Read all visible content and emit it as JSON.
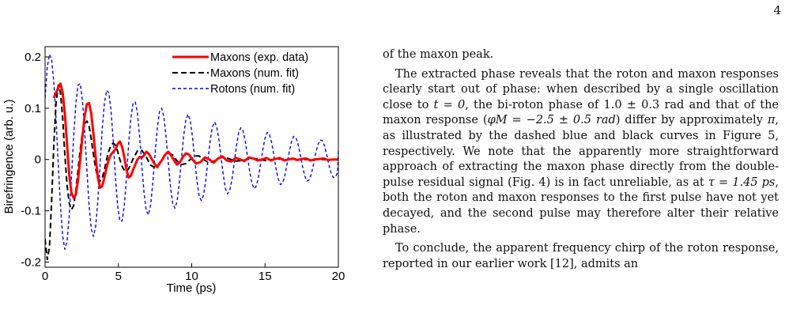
{
  "page": {
    "number": "4"
  },
  "chart_data": {
    "type": "line",
    "xlabel": "Time (ps)",
    "ylabel": "Birefringence (arb. u.)",
    "xlim": [
      0,
      20
    ],
    "ylim": [
      -0.21,
      0.22
    ],
    "xticks": [
      0,
      5,
      10,
      15,
      20
    ],
    "yticks": [
      -0.2,
      -0.1,
      0,
      0.1,
      0.2
    ],
    "ytick_labels": [
      "-0.2",
      "-0.1",
      "0",
      "0.1",
      "0.2"
    ],
    "grid": false,
    "legend": "top-right",
    "series": [
      {
        "name": "Maxons (exp. data)",
        "color": "#ff0000",
        "style": "solid",
        "x": [
          0.6,
          0.9,
          1.05,
          1.2,
          1.35,
          1.5,
          1.65,
          1.8,
          1.95,
          2.1,
          2.25,
          2.4,
          2.55,
          2.7,
          2.85,
          3.0,
          3.15,
          3.3,
          3.45,
          3.6,
          3.75,
          3.9,
          4.05,
          4.2,
          4.35,
          4.5,
          4.65,
          4.8,
          4.95,
          5.1,
          5.25,
          5.4,
          5.55,
          5.7,
          5.85,
          6.0,
          6.15,
          6.3,
          6.45,
          6.6,
          6.75,
          6.9,
          7.05,
          7.2,
          7.35,
          7.5,
          7.65,
          7.8,
          8.0,
          8.2,
          8.4,
          8.6,
          8.8,
          9.0,
          9.2,
          9.4,
          9.6,
          9.8,
          10.0,
          10.3,
          10.6,
          10.9,
          11.2,
          11.5,
          11.8,
          12.1,
          12.4,
          12.7,
          13.0,
          13.3,
          13.6,
          13.9,
          14.2,
          14.5,
          14.8,
          15.1,
          15.4,
          15.7,
          16.0,
          16.3,
          16.6,
          16.9,
          17.2,
          17.5,
          17.8,
          18.1,
          18.4,
          18.7,
          19.0,
          19.3,
          19.6,
          20.0
        ],
        "y": [
          0.12,
          0.14,
          0.148,
          0.13,
          0.09,
          0.03,
          -0.03,
          -0.065,
          -0.075,
          -0.068,
          -0.04,
          0.0,
          0.045,
          0.085,
          0.108,
          0.11,
          0.09,
          0.05,
          0.005,
          -0.035,
          -0.055,
          -0.052,
          -0.035,
          -0.015,
          0.0,
          0.01,
          0.015,
          0.02,
          0.03,
          0.035,
          0.025,
          0.005,
          -0.02,
          -0.035,
          -0.032,
          -0.02,
          -0.01,
          0.0,
          0.005,
          0.004,
          0.008,
          0.015,
          0.012,
          0.005,
          -0.003,
          -0.01,
          -0.015,
          -0.008,
          0.0,
          0.01,
          0.015,
          0.008,
          -0.002,
          -0.01,
          -0.005,
          0.005,
          0.012,
          0.01,
          0.002,
          -0.008,
          -0.005,
          0.004,
          0.0,
          -0.006,
          0.002,
          0.006,
          -0.002,
          -0.004,
          0.003,
          0.0,
          -0.003,
          0.004,
          0.002,
          -0.002,
          0.0,
          0.003,
          -0.002,
          0.001,
          0.003,
          -0.002,
          0.0,
          0.002,
          -0.001,
          0.001,
          0.002,
          -0.002,
          0.0,
          0.001,
          0.002,
          -0.001,
          0.0,
          0.0
        ]
      },
      {
        "name": "Maxons (num. fit)",
        "color": "#000000",
        "style": "dashed",
        "x": [
          0.0,
          0.15,
          0.3,
          0.45,
          0.6,
          0.75,
          0.9,
          1.05,
          1.2,
          1.35,
          1.5,
          1.65,
          1.8,
          1.95,
          2.1,
          2.25,
          2.4,
          2.55,
          2.7,
          2.85,
          3.0,
          3.15,
          3.3,
          3.45,
          3.6,
          3.75,
          3.9,
          4.05,
          4.2,
          4.35,
          4.5,
          4.65,
          4.8,
          4.95,
          5.1,
          5.25,
          5.4,
          5.55,
          5.7,
          5.85,
          6.0,
          6.3,
          6.6,
          6.9,
          7.2,
          7.5,
          7.8,
          8.1,
          8.4,
          8.7,
          9.0,
          9.3,
          9.6,
          9.9,
          10.2,
          10.5,
          10.8,
          11.1,
          11.4,
          11.7,
          12.0,
          12.5,
          13.0,
          13.5,
          14.0,
          14.5,
          15.0,
          15.5,
          16.0,
          17.0,
          18.0,
          19.0,
          20.0
        ],
        "y": [
          -0.155,
          -0.195,
          -0.17,
          -0.08,
          0.03,
          0.11,
          0.145,
          0.13,
          0.08,
          0.01,
          -0.05,
          -0.085,
          -0.098,
          -0.09,
          -0.06,
          -0.02,
          0.02,
          0.052,
          0.07,
          0.075,
          0.065,
          0.04,
          0.01,
          -0.018,
          -0.036,
          -0.042,
          -0.036,
          -0.02,
          0.0,
          0.017,
          0.028,
          0.032,
          0.028,
          0.016,
          0.0,
          -0.013,
          -0.021,
          -0.023,
          -0.018,
          -0.009,
          0.001,
          0.017,
          0.018,
          0.005,
          -0.011,
          -0.016,
          -0.008,
          0.006,
          0.013,
          0.009,
          -0.003,
          -0.01,
          -0.008,
          0.0,
          0.007,
          0.007,
          0.0,
          -0.005,
          -0.005,
          0.0,
          0.004,
          0.002,
          -0.003,
          -0.002,
          0.002,
          0.001,
          -0.002,
          0.0,
          0.001,
          0.0,
          0.0,
          0.0,
          0.0
        ]
      },
      {
        "name": "Rotons  (num. fit)",
        "color": "#0000ff",
        "style": "dashed",
        "x": [
          0.0,
          0.15,
          0.3,
          0.45,
          0.6,
          0.75,
          0.9,
          1.05,
          1.2,
          1.35,
          1.5,
          1.65,
          1.8,
          1.95,
          2.1,
          2.25,
          2.4,
          2.55,
          2.7,
          2.85,
          3.0,
          3.15,
          3.3,
          3.45,
          3.6,
          3.75,
          3.9,
          4.05,
          4.2,
          4.35,
          4.5,
          4.65,
          4.8,
          4.95,
          5.1,
          5.25,
          5.4,
          5.55,
          5.7,
          5.85,
          6.0,
          6.15,
          6.3,
          6.45,
          6.6,
          6.75,
          6.9,
          7.05,
          7.2,
          7.35,
          7.5,
          7.65,
          7.8,
          7.95,
          8.1,
          8.25,
          8.4,
          8.55,
          8.7,
          8.85,
          9.0,
          9.15,
          9.3,
          9.45,
          9.6,
          9.75,
          9.9,
          10.05,
          10.2,
          10.35,
          10.5,
          10.65,
          10.8,
          10.95,
          11.1,
          11.25,
          11.4,
          11.55,
          11.7,
          11.85,
          12.0,
          12.15,
          12.3,
          12.45,
          12.6,
          12.75,
          12.9,
          13.05,
          13.2,
          13.35,
          13.5,
          13.65,
          13.8,
          13.95,
          14.1,
          14.25,
          14.4,
          14.55,
          14.7,
          14.85,
          15.0,
          15.15,
          15.3,
          15.45,
          15.6,
          15.75,
          15.9,
          16.05,
          16.2,
          16.35,
          16.5,
          16.65,
          16.8,
          16.95,
          17.1,
          17.25,
          17.4,
          17.55,
          17.7,
          17.85,
          18.0,
          18.15,
          18.3,
          18.45,
          18.6,
          18.75,
          18.9,
          19.05,
          19.2,
          19.35,
          19.5,
          19.65,
          19.8,
          19.95,
          20.0
        ],
        "y": [
          0.12,
          0.18,
          0.205,
          0.195,
          0.15,
          0.08,
          -0.01,
          -0.09,
          -0.15,
          -0.175,
          -0.16,
          -0.11,
          -0.035,
          0.045,
          0.11,
          0.145,
          0.148,
          0.115,
          0.055,
          -0.02,
          -0.09,
          -0.135,
          -0.15,
          -0.13,
          -0.08,
          -0.01,
          0.06,
          0.11,
          0.135,
          0.13,
          0.095,
          0.035,
          -0.035,
          -0.09,
          -0.12,
          -0.12,
          -0.09,
          -0.035,
          0.03,
          0.08,
          0.11,
          0.112,
          0.09,
          0.045,
          -0.012,
          -0.065,
          -0.1,
          -0.108,
          -0.088,
          -0.045,
          0.01,
          0.06,
          0.093,
          0.1,
          0.083,
          0.045,
          -0.005,
          -0.052,
          -0.085,
          -0.095,
          -0.082,
          -0.047,
          0.0,
          0.046,
          0.078,
          0.088,
          0.076,
          0.045,
          0.002,
          -0.04,
          -0.07,
          -0.08,
          -0.07,
          -0.043,
          -0.004,
          0.035,
          0.063,
          0.073,
          0.065,
          0.04,
          0.005,
          -0.03,
          -0.057,
          -0.067,
          -0.06,
          -0.038,
          -0.006,
          0.027,
          0.052,
          0.062,
          0.056,
          0.036,
          0.007,
          -0.023,
          -0.046,
          -0.057,
          -0.052,
          -0.035,
          -0.008,
          0.02,
          0.042,
          0.053,
          0.049,
          0.033,
          0.008,
          -0.018,
          -0.038,
          -0.049,
          -0.046,
          -0.031,
          -0.009,
          0.015,
          0.034,
          0.045,
          0.043,
          0.03,
          0.01,
          -0.013,
          -0.031,
          -0.042,
          -0.04,
          -0.029,
          -0.01,
          0.012,
          0.028,
          0.038,
          0.037,
          0.027,
          0.01,
          -0.01,
          -0.026,
          -0.035,
          -0.034,
          -0.025,
          0.02
        ]
      }
    ]
  },
  "text": {
    "p1": "of the maxon peak.",
    "p2_a": "The extracted phase reveals that the roton and maxon responses clearly start out of phase: when described by a single oscillation close to ",
    "p2_t0": "t = 0",
    "p2_b": ", the bi-roton phase of ",
    "p2_phase_roton": "1.0 ± 0.3 rad",
    "p2_c": " and that of the maxon response (",
    "p2_phase_maxon": "φM = −2.5 ± 0.5 rad",
    "p2_d": ") differ by approximately ",
    "p2_pi": "π",
    "p2_e": ", as illustrated by the dashed blue and black curves in Figure 5, respectively. We note that the apparently more straightforward approach of extracting the maxon phase directly from the double-pulse residual signal (Fig. 4) is in fact unreliable, as at ",
    "p2_tau": "τ = 1.45 ps",
    "p2_f": ", both the roton and maxon responses to the first pulse have not yet decayed, and the second pulse may therefore alter their relative phase.",
    "p3": "To conclude, the apparent frequency chirp of the roton response, reported in our earlier work [12], admits an"
  }
}
